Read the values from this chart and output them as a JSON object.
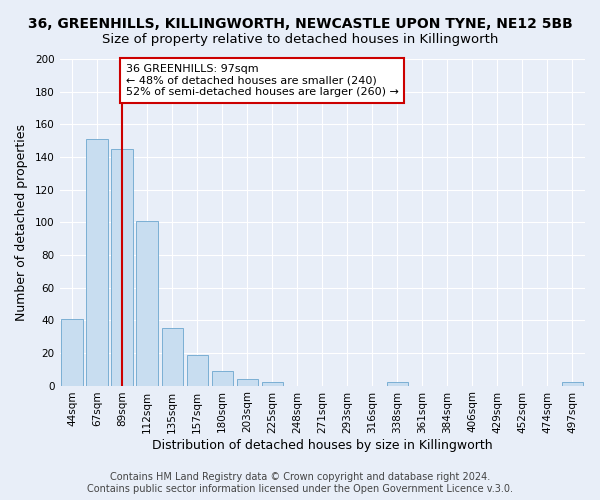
{
  "title": "36, GREENHILLS, KILLINGWORTH, NEWCASTLE UPON TYNE, NE12 5BB",
  "subtitle": "Size of property relative to detached houses in Killingworth",
  "xlabel": "Distribution of detached houses by size in Killingworth",
  "ylabel": "Number of detached properties",
  "bar_labels": [
    "44sqm",
    "67sqm",
    "89sqm",
    "112sqm",
    "135sqm",
    "157sqm",
    "180sqm",
    "203sqm",
    "225sqm",
    "248sqm",
    "271sqm",
    "293sqm",
    "316sqm",
    "338sqm",
    "361sqm",
    "384sqm",
    "406sqm",
    "429sqm",
    "452sqm",
    "474sqm",
    "497sqm"
  ],
  "bar_values": [
    41,
    151,
    145,
    101,
    35,
    19,
    9,
    4,
    2,
    0,
    0,
    0,
    0,
    2,
    0,
    0,
    0,
    0,
    0,
    0,
    2
  ],
  "bar_color": "#c8ddf0",
  "bar_edge_color": "#7bafd4",
  "ylim": [
    0,
    200
  ],
  "yticks": [
    0,
    20,
    40,
    60,
    80,
    100,
    120,
    140,
    160,
    180,
    200
  ],
  "vline_x": 2,
  "vline_color": "#cc0000",
  "annotation_title": "36 GREENHILLS: 97sqm",
  "annotation_line1": "← 48% of detached houses are smaller (240)",
  "annotation_line2": "52% of semi-detached houses are larger (260) →",
  "annotation_box_color": "#ffffff",
  "annotation_box_edge": "#cc0000",
  "footer1": "Contains HM Land Registry data © Crown copyright and database right 2024.",
  "footer2": "Contains public sector information licensed under the Open Government Licence v.3.0.",
  "background_color": "#e8eef8",
  "grid_color": "#ffffff",
  "title_fontsize": 10,
  "subtitle_fontsize": 9.5,
  "axis_label_fontsize": 9,
  "tick_fontsize": 7.5,
  "annotation_fontsize": 8,
  "footer_fontsize": 7
}
